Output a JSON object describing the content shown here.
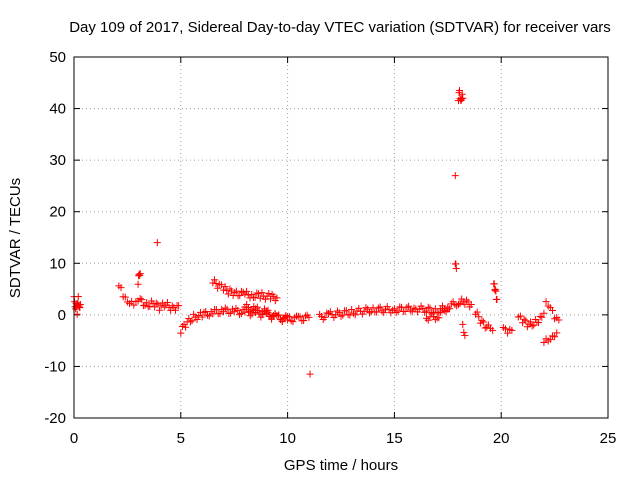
{
  "chart_data": {
    "type": "scatter",
    "title": "Day 109 of 2017, Sidereal Day-to-day VTEC variation (SDTVAR) for receiver vars",
    "xlabel": "GPS time / hours",
    "ylabel": "SDTVAR / TECUs",
    "xlim": [
      0,
      25
    ],
    "ylim": [
      -20,
      50
    ],
    "x_ticks": [
      0,
      5,
      10,
      15,
      20,
      25
    ],
    "y_ticks": [
      -20,
      -10,
      0,
      10,
      20,
      30,
      40,
      50
    ],
    "x_tick_labels": [
      "0",
      "5",
      "10",
      "15",
      "20",
      "25"
    ],
    "y_tick_labels": [
      "-20",
      "-10",
      "0",
      "10",
      "20",
      "30",
      "40",
      "50"
    ],
    "grid": true,
    "marker": "plus",
    "color": "#ff0000",
    "segments": [
      {
        "x": [
          0.0,
          0.05,
          0.1,
          0.15,
          0.2,
          0.25,
          0.3
        ],
        "y": [
          3.5,
          1.0,
          2.5,
          0.5,
          3.0,
          1.5,
          2.0
        ]
      },
      {
        "x": [
          2.1,
          2.3,
          2.5,
          2.7,
          2.9,
          3.1,
          3.4,
          3.7,
          4.0,
          4.3,
          4.6,
          4.9
        ],
        "y": [
          5.5,
          4.0,
          3.0,
          2.5,
          2.0,
          2.8,
          1.8,
          2.3,
          1.5,
          2.0,
          1.2,
          1.8
        ]
      },
      {
        "x": [
          3.0,
          3.05,
          3.1
        ],
        "y": [
          6.5,
          7.5,
          8.0
        ]
      },
      {
        "x": [
          5.0,
          5.3,
          5.6,
          6.0,
          6.5,
          7.0,
          7.5,
          8.0,
          8.5,
          9.0,
          9.5,
          10.0,
          10.5,
          11.0
        ],
        "y": [
          -3.0,
          -1.5,
          -0.5,
          0.0,
          0.5,
          0.8,
          0.7,
          0.5,
          0.3,
          0.0,
          -0.5,
          -0.8,
          -0.8,
          -0.5
        ]
      },
      {
        "x": [
          6.5,
          6.8,
          7.0,
          7.3,
          7.6,
          8.0,
          8.4,
          8.8,
          9.2,
          9.5
        ],
        "y": [
          6.5,
          5.5,
          5.0,
          4.5,
          4.2,
          4.0,
          3.8,
          3.7,
          3.5,
          3.3
        ]
      },
      {
        "x": [
          8.0,
          8.5,
          9.0,
          9.5,
          10.0
        ],
        "y": [
          1.5,
          1.0,
          0.5,
          -0.5,
          -1.0
        ]
      },
      {
        "x": [
          11.5,
          12.0,
          13.0,
          14.0,
          15.0,
          16.0,
          17.0,
          17.5
        ],
        "y": [
          -0.5,
          0.0,
          0.5,
          1.0,
          1.0,
          1.2,
          0.8,
          1.5
        ]
      },
      {
        "x": [
          16.5,
          17.0,
          17.5,
          18.0,
          18.3,
          18.6
        ],
        "y": [
          -0.5,
          -0.3,
          1.5,
          2.5,
          2.5,
          2.0
        ]
      },
      {
        "x": [
          18.0,
          18.05,
          18.1,
          18.15,
          18.2
        ],
        "y": [
          42.0,
          43.0,
          41.5,
          42.5,
          42.0
        ]
      },
      {
        "x": [
          17.85
        ],
        "y": [
          27.0
        ]
      },
      {
        "x": [
          17.85,
          17.9
        ],
        "y": [
          10.0,
          9.0
        ]
      },
      {
        "x": [
          18.2,
          18.3
        ],
        "y": [
          -2.0,
          -4.0
        ]
      },
      {
        "x": [
          18.8,
          19.1,
          19.4,
          19.6
        ],
        "y": [
          0.5,
          -1.5,
          -2.5,
          -3.0
        ]
      },
      {
        "x": [
          19.65,
          19.7,
          19.75,
          19.8
        ],
        "y": [
          6.5,
          5.0,
          4.0,
          3.0
        ]
      },
      {
        "x": [
          20.1,
          20.3,
          20.5
        ],
        "y": [
          -3.0,
          -3.5,
          -3.0
        ]
      },
      {
        "x": [
          20.8,
          21.0,
          21.3,
          21.6,
          21.9,
          22.1,
          22.3,
          22.5,
          22.7
        ],
        "y": [
          -0.5,
          -1.0,
          -2.0,
          -1.5,
          -0.5,
          2.0,
          1.0,
          -0.5,
          -1.0
        ]
      },
      {
        "x": [
          22.0,
          22.2,
          22.4,
          22.6
        ],
        "y": [
          -5.0,
          -4.5,
          -4.0,
          -3.5
        ]
      },
      {
        "x": [
          3.9
        ],
        "y": [
          14.0
        ]
      },
      {
        "x": [
          11.05
        ],
        "y": [
          -11.5
        ]
      }
    ]
  }
}
